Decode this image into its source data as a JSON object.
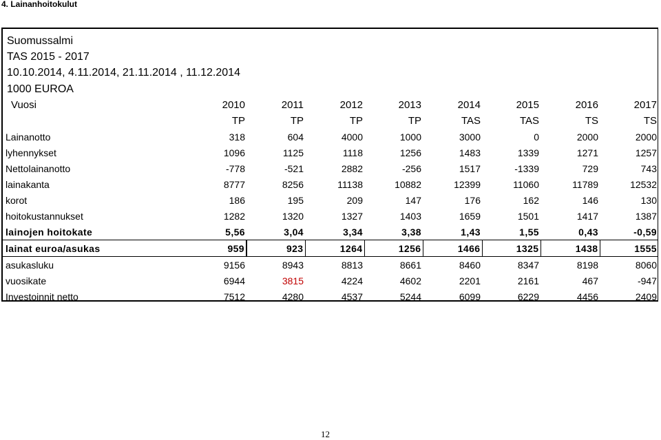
{
  "section_heading": "4. Lainanhoitokulut",
  "info": {
    "municipality": "Suomussalmi",
    "plan_period": "TAS 2015 - 2017",
    "dates": "10.10.2014, 4.11.2014, 21.11.2014 , 11.12.2014",
    "unit": "1000 EUROA"
  },
  "table": {
    "year_label": "Vuosi",
    "years": [
      "2010",
      "2011",
      "2012",
      "2013",
      "2014",
      "2015",
      "2016",
      "2017"
    ],
    "types": [
      "TP",
      "TP",
      "TP",
      "TP",
      "TAS",
      "TAS",
      "TS",
      "TS"
    ],
    "rows": [
      {
        "label": "Lainanotto",
        "values": [
          "318",
          "604",
          "4000",
          "1000",
          "3000",
          "0",
          "2000",
          "2000"
        ]
      },
      {
        "label": "lyhennykset",
        "values": [
          "1096",
          "1125",
          "1118",
          "1256",
          "1483",
          "1339",
          "1271",
          "1257"
        ]
      },
      {
        "label": "Nettolainanotto",
        "values": [
          "-778",
          "-521",
          "2882",
          "-256",
          "1517",
          "-1339",
          "729",
          "743"
        ]
      },
      {
        "label": "lainakanta",
        "values": [
          "8777",
          "8256",
          "11138",
          "10882",
          "12399",
          "11060",
          "11789",
          "12532"
        ]
      },
      {
        "label": "korot",
        "values": [
          "186",
          "195",
          "209",
          "147",
          "176",
          "162",
          "146",
          "130"
        ]
      },
      {
        "label": "hoitokustannukset",
        "values": [
          "1282",
          "1320",
          "1327",
          "1403",
          "1659",
          "1501",
          "1417",
          "1387"
        ]
      },
      {
        "label": "lainojen hoitokate",
        "values": [
          "5,56",
          "3,04",
          "3,34",
          "3,38",
          "1,43",
          "1,55",
          "0,43",
          "-0,59"
        ]
      },
      {
        "label": "lainat euroa/asukas",
        "values": [
          "959",
          "923",
          "1264",
          "1256",
          "1466",
          "1325",
          "1438",
          "1555"
        ]
      },
      {
        "label": "asukasluku",
        "values": [
          "9156",
          "8943",
          "8813",
          "8661",
          "8460",
          "8347",
          "8198",
          "8060"
        ]
      },
      {
        "label": "vuosikate",
        "values": [
          "6944",
          "3815",
          "4224",
          "4602",
          "2201",
          "2161",
          "467",
          "-947"
        ]
      },
      {
        "label": "Investoinnit netto",
        "values": [
          "7512",
          "4280",
          "4537",
          "5244",
          "6099",
          "6229",
          "4456",
          "2409"
        ]
      }
    ],
    "highlight_color": "#c00000"
  },
  "page_number": "12"
}
